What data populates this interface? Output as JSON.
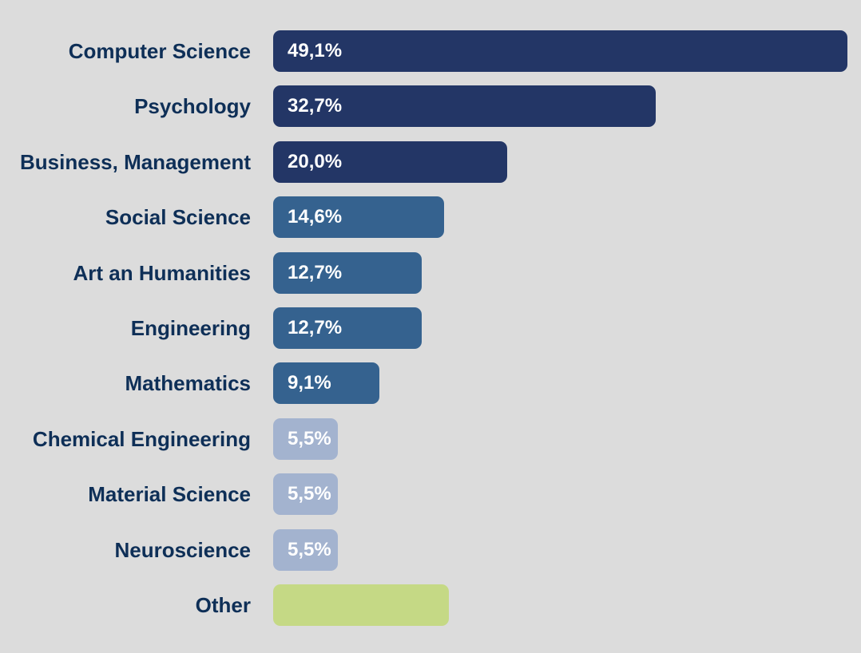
{
  "chart_data": {
    "type": "bar",
    "orientation": "horizontal",
    "categories": [
      "Computer Science",
      "Psychology",
      "Business, Management",
      "Social Science",
      "Art an Humanities",
      "Engineering",
      "Mathematics",
      "Chemical Engineering",
      "Material Science",
      "Neuroscience",
      "Other"
    ],
    "values": [
      49.1,
      32.7,
      20.0,
      14.6,
      12.7,
      12.7,
      9.1,
      5.5,
      5.5,
      5.5,
      15.0
    ],
    "value_labels": [
      "49,1%",
      "32,7%",
      "20,0%",
      "14,6%",
      "12,7%",
      "12,7%",
      "9,1%",
      "5,5%",
      "5,5%",
      "5,5%",
      ""
    ],
    "colors": [
      "#233666",
      "#233666",
      "#233666",
      "#35628f",
      "#35628f",
      "#35628f",
      "#35628f",
      "#a3b3cf",
      "#a3b3cf",
      "#a3b3cf",
      "#c5d985"
    ],
    "xlim": [
      0,
      49.1
    ],
    "grid": false,
    "legend": "none",
    "title": "",
    "xlabel": "",
    "ylabel": ""
  }
}
